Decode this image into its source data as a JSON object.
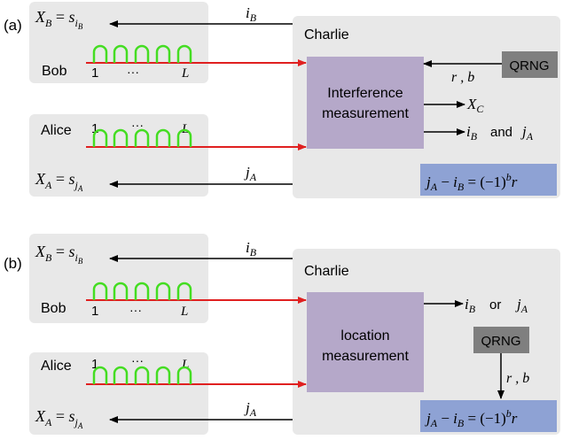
{
  "colors": {
    "panel_bg": "#e8e8e8",
    "box_purple": "#b5a8c9",
    "qrng_bg": "#7f7f7f",
    "formula_bg": "#8ea2d4",
    "red_arrow": "#e02020",
    "green_pulse": "#44dd22",
    "black": "#000000"
  },
  "panel_a": {
    "tag": "(a)",
    "bob_label": "Bob",
    "alice_label": "Alice",
    "charlie_label": "Charlie",
    "pulse_first": "1",
    "pulse_dots": "···",
    "pulse_last": "L",
    "xb_formula": "X_B = s_{i_B}",
    "xa_formula": "X_A = s_{j_A}",
    "ib_label": "i_B",
    "ja_label": "j_A",
    "measure_line1": "Interference",
    "measure_line2": "measurement",
    "qrng_label": "QRNG",
    "rb_label": "r , b",
    "xc_label": "X_C",
    "ib_out": "i_B",
    "and_word": "and",
    "ja_out": "j_A",
    "relation": "j_A − i_B = (−1)^b r"
  },
  "panel_b": {
    "tag": "(b)",
    "bob_label": "Bob",
    "alice_label": "Alice",
    "charlie_label": "Charlie",
    "pulse_first": "1",
    "pulse_dots": "···",
    "pulse_last": "L",
    "xb_formula": "X_B = s_{i_B}",
    "xa_formula": "X_A = s_{j_A}",
    "ib_label": "i_B",
    "ja_label": "j_A",
    "measure_line1": "location",
    "measure_line2": "measurement",
    "qrng_label": "QRNG",
    "rb_label": "r , b",
    "ib_out": "i_B",
    "or_word": "or",
    "ja_out": "j_A",
    "relation": "j_A − i_B = (−1)^b r"
  }
}
